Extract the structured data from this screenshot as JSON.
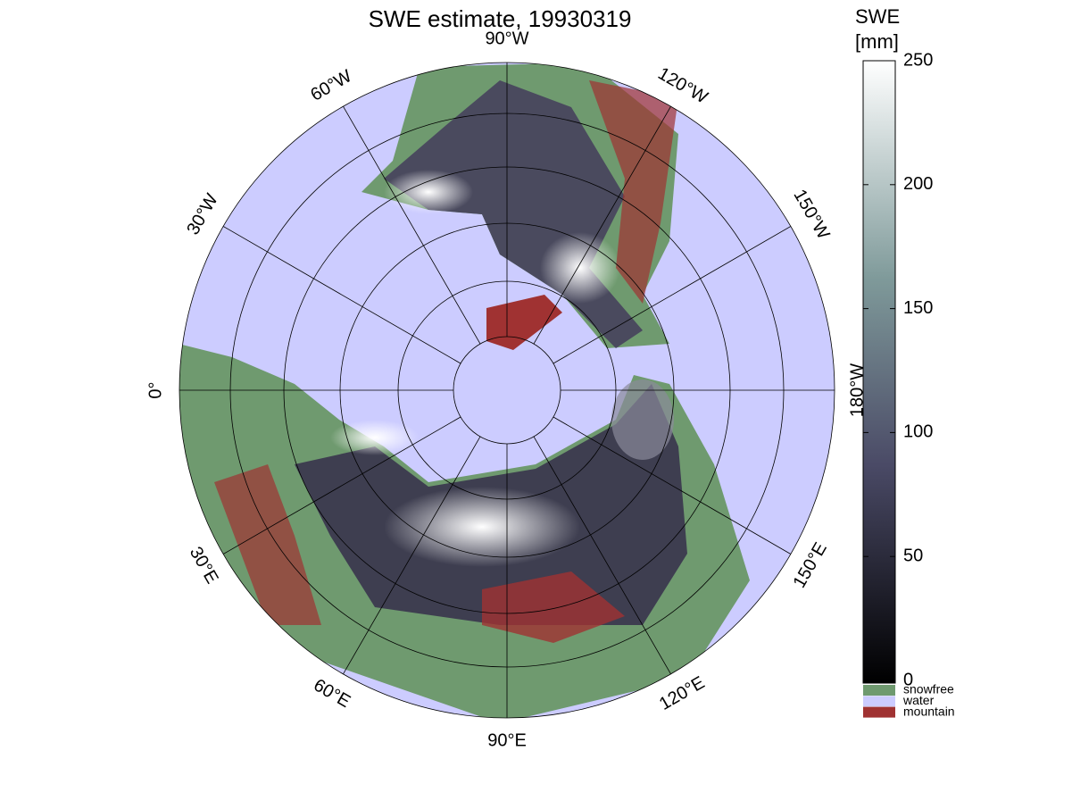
{
  "title": "SWE estimate, 19930319",
  "longitude_labels": [
    "90°W",
    "120°W",
    "150°W",
    "180°W",
    "150°E",
    "120°E",
    "90°E",
    "60°E",
    "30°E",
    "0°",
    "30°W",
    "60°W"
  ],
  "colorbar": {
    "label": [
      "SWE",
      "[mm]"
    ],
    "lim": [
      0,
      250
    ],
    "ticks": [
      0,
      50,
      100,
      150,
      200,
      250
    ]
  },
  "legend": [
    {
      "label": "snowfree",
      "color": "#6f9a6f"
    },
    {
      "label": "water",
      "color": "#ccccff"
    },
    {
      "label": "mountain",
      "color": "#a03232"
    }
  ]
}
